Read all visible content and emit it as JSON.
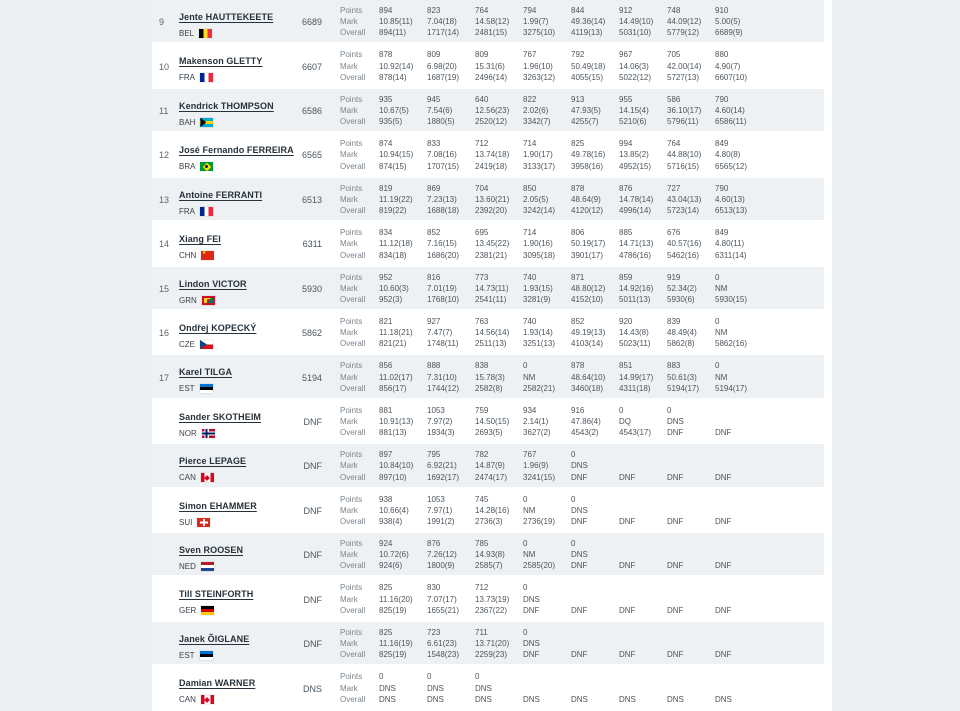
{
  "colors": {
    "page_gutter": "#eceff1",
    "row_stripe": "#eef1f3",
    "value_text": "#4b555e",
    "label_text": "#7b848d",
    "name_text": "#27313b"
  },
  "table": {
    "row_labels": [
      "Points",
      "Mark",
      "Overall"
    ],
    "rows": [
      {
        "rank": "9",
        "name": "Jente HAUTTEKEETE",
        "country": "BEL",
        "total": "6689",
        "points": [
          "894",
          "823",
          "764",
          "794",
          "844",
          "912",
          "748",
          "910"
        ],
        "mark": [
          "10.85(11)",
          "7.04(18)",
          "14.58(12)",
          "1.99(7)",
          "49.36(14)",
          "14.49(10)",
          "44.09(12)",
          "5.00(5)"
        ],
        "overall": [
          "894(11)",
          "1717(14)",
          "2481(15)",
          "3275(10)",
          "4119(13)",
          "5031(10)",
          "5779(12)",
          "6689(9)"
        ]
      },
      {
        "rank": "10",
        "name": "Makenson GLETTY",
        "country": "FRA",
        "total": "6607",
        "points": [
          "878",
          "809",
          "809",
          "767",
          "792",
          "967",
          "705",
          "880"
        ],
        "mark": [
          "10.92(14)",
          "6.98(20)",
          "15.31(6)",
          "1.96(10)",
          "50.49(18)",
          "14.06(3)",
          "42.00(14)",
          "4.90(7)"
        ],
        "overall": [
          "878(14)",
          "1687(19)",
          "2496(14)",
          "3263(12)",
          "4055(15)",
          "5022(12)",
          "5727(13)",
          "6607(10)"
        ]
      },
      {
        "rank": "11",
        "name": "Kendrick THOMPSON",
        "country": "BAH",
        "total": "6586",
        "points": [
          "935",
          "945",
          "640",
          "822",
          "913",
          "955",
          "586",
          "790"
        ],
        "mark": [
          "10.67(5)",
          "7.54(6)",
          "12.56(23)",
          "2.02(6)",
          "47.93(5)",
          "14.15(4)",
          "36.10(17)",
          "4.60(14)"
        ],
        "overall": [
          "935(5)",
          "1880(5)",
          "2520(12)",
          "3342(7)",
          "4255(7)",
          "5210(6)",
          "5796(11)",
          "6586(11)"
        ]
      },
      {
        "rank": "12",
        "name": "José Fernando FERREIRA",
        "country": "BRA",
        "total": "6565",
        "points": [
          "874",
          "833",
          "712",
          "714",
          "825",
          "994",
          "764",
          "849"
        ],
        "mark": [
          "10.94(15)",
          "7.08(16)",
          "13.74(18)",
          "1.90(17)",
          "49.78(16)",
          "13.85(2)",
          "44.88(10)",
          "4.80(8)"
        ],
        "overall": [
          "874(15)",
          "1707(15)",
          "2419(18)",
          "3133(17)",
          "3958(16)",
          "4952(15)",
          "5716(15)",
          "6565(12)"
        ]
      },
      {
        "rank": "13",
        "name": "Antoine FERRANTI",
        "country": "FRA",
        "total": "6513",
        "points": [
          "819",
          "869",
          "704",
          "850",
          "878",
          "876",
          "727",
          "790"
        ],
        "mark": [
          "11.19(22)",
          "7.23(13)",
          "13.60(21)",
          "2.05(5)",
          "48.64(9)",
          "14.78(14)",
          "43.04(13)",
          "4.60(13)"
        ],
        "overall": [
          "819(22)",
          "1688(18)",
          "2392(20)",
          "3242(14)",
          "4120(12)",
          "4996(14)",
          "5723(14)",
          "6513(13)"
        ]
      },
      {
        "rank": "14",
        "name": "Xiang FEI",
        "country": "CHN",
        "total": "6311",
        "points": [
          "834",
          "852",
          "695",
          "714",
          "806",
          "885",
          "676",
          "849"
        ],
        "mark": [
          "11.12(18)",
          "7.16(15)",
          "13.45(22)",
          "1.90(16)",
          "50.19(17)",
          "14.71(13)",
          "40.57(16)",
          "4.80(11)"
        ],
        "overall": [
          "834(18)",
          "1686(20)",
          "2381(21)",
          "3095(18)",
          "3901(17)",
          "4786(16)",
          "5462(16)",
          "6311(14)"
        ]
      },
      {
        "rank": "15",
        "name": "Lindon VICTOR",
        "country": "GRN",
        "total": "5930",
        "points": [
          "952",
          "816",
          "773",
          "740",
          "871",
          "859",
          "919",
          "0"
        ],
        "mark": [
          "10.60(3)",
          "7.01(19)",
          "14.73(11)",
          "1.93(15)",
          "48.80(12)",
          "14.92(16)",
          "52.34(2)",
          "NM"
        ],
        "overall": [
          "952(3)",
          "1768(10)",
          "2541(11)",
          "3281(9)",
          "4152(10)",
          "5011(13)",
          "5930(6)",
          "5930(15)"
        ]
      },
      {
        "rank": "16",
        "name": "Ondřej KOPECKÝ",
        "country": "CZE",
        "total": "5862",
        "points": [
          "821",
          "927",
          "763",
          "740",
          "852",
          "920",
          "839",
          "0"
        ],
        "mark": [
          "11.18(21)",
          "7.47(7)",
          "14.56(14)",
          "1.93(14)",
          "49.19(13)",
          "14.43(8)",
          "48.49(4)",
          "NM"
        ],
        "overall": [
          "821(21)",
          "1748(11)",
          "2511(13)",
          "3251(13)",
          "4103(14)",
          "5023(11)",
          "5862(8)",
          "5862(16)"
        ]
      },
      {
        "rank": "17",
        "name": "Karel TILGA",
        "country": "EST",
        "total": "5194",
        "points": [
          "856",
          "888",
          "838",
          "0",
          "878",
          "851",
          "883",
          "0"
        ],
        "mark": [
          "11.02(17)",
          "7.31(10)",
          "15.78(3)",
          "NM",
          "48.64(10)",
          "14.99(17)",
          "50.61(3)",
          "NM"
        ],
        "overall": [
          "856(17)",
          "1744(12)",
          "2582(8)",
          "2582(21)",
          "3460(18)",
          "4311(18)",
          "5194(17)",
          "5194(17)"
        ]
      },
      {
        "rank": "",
        "name": "Sander SKOTHEIM",
        "country": "NOR",
        "total": "DNF",
        "points": [
          "881",
          "1053",
          "759",
          "934",
          "916",
          "0",
          "0"
        ],
        "mark": [
          "10.91(13)",
          "7.97(2)",
          "14.50(15)",
          "2.14(1)",
          "47.86(4)",
          "DQ",
          "DNS"
        ],
        "overall": [
          "881(13)",
          "1934(3)",
          "2693(5)",
          "3627(2)",
          "4543(2)",
          "4543(17)",
          "DNF",
          "DNF"
        ]
      },
      {
        "rank": "",
        "name": "Pierce LEPAGE",
        "country": "CAN",
        "total": "DNF",
        "points": [
          "897",
          "795",
          "782",
          "767",
          "0"
        ],
        "mark": [
          "10.84(10)",
          "6.92(21)",
          "14.87(9)",
          "1.96(9)",
          "DNS"
        ],
        "overall": [
          "897(10)",
          "1692(17)",
          "2474(17)",
          "3241(15)",
          "DNF",
          "DNF",
          "DNF",
          "DNF"
        ]
      },
      {
        "rank": "",
        "name": "Simon EHAMMER",
        "country": "SUI",
        "total": "DNF",
        "points": [
          "938",
          "1053",
          "745",
          "0",
          "0"
        ],
        "mark": [
          "10.66(4)",
          "7.97(1)",
          "14.28(16)",
          "NM",
          "DNS"
        ],
        "overall": [
          "938(4)",
          "1991(2)",
          "2736(3)",
          "2736(19)",
          "DNF",
          "DNF",
          "DNF",
          "DNF"
        ]
      },
      {
        "rank": "",
        "name": "Sven ROOSEN",
        "country": "NED",
        "total": "DNF",
        "points": [
          "924",
          "876",
          "785",
          "0",
          "0"
        ],
        "mark": [
          "10.72(6)",
          "7.26(12)",
          "14.93(8)",
          "NM",
          "DNS"
        ],
        "overall": [
          "924(6)",
          "1800(9)",
          "2585(7)",
          "2585(20)",
          "DNF",
          "DNF",
          "DNF",
          "DNF"
        ]
      },
      {
        "rank": "",
        "name": "Till STEINFORTH",
        "country": "GER",
        "total": "DNF",
        "points": [
          "825",
          "830",
          "712",
          "0"
        ],
        "mark": [
          "11.16(20)",
          "7.07(17)",
          "13.73(19)",
          "DNS"
        ],
        "overall": [
          "825(19)",
          "1655(21)",
          "2367(22)",
          "DNF",
          "DNF",
          "DNF",
          "DNF",
          "DNF"
        ]
      },
      {
        "rank": "",
        "name": "Janek ÕIGLANE",
        "country": "EST",
        "total": "DNF",
        "points": [
          "825",
          "723",
          "711",
          "0"
        ],
        "mark": [
          "11.16(19)",
          "6.61(23)",
          "13.71(20)",
          "DNS"
        ],
        "overall": [
          "825(19)",
          "1548(23)",
          "2259(23)",
          "DNF",
          "DNF",
          "DNF",
          "DNF",
          "DNF"
        ]
      },
      {
        "rank": "",
        "name": "Damian WARNER",
        "country": "CAN",
        "total": "DNS",
        "points": [
          "0",
          "0",
          "0"
        ],
        "mark": [
          "DNS",
          "DNS",
          "DNS"
        ],
        "overall": [
          "DNS",
          "DNS",
          "DNS",
          "DNS",
          "DNS",
          "DNS",
          "DNS",
          "DNS"
        ]
      }
    ]
  }
}
